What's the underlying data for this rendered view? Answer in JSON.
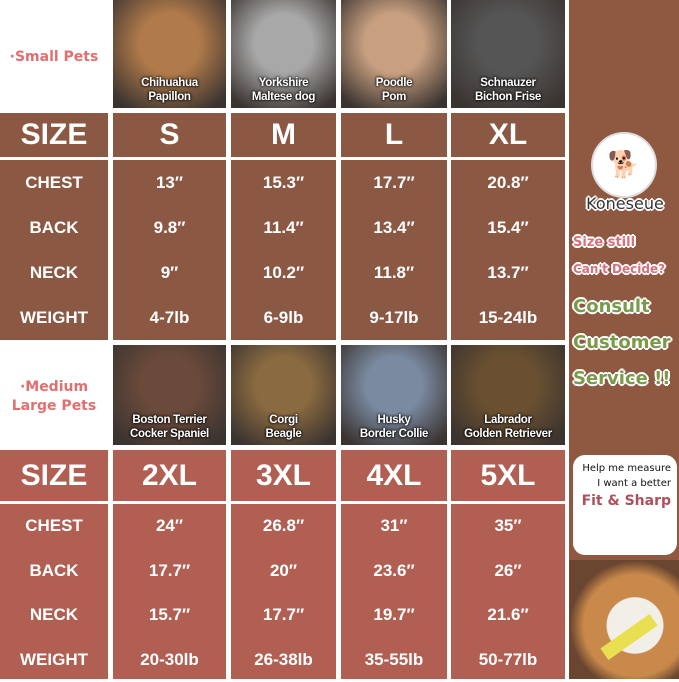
{
  "colors": {
    "top_table": "#8b5843",
    "bottom_table": "#b25f53",
    "sidebar": "#8f5840",
    "pink": "#e07070",
    "green": "#7a9a4a"
  },
  "small": {
    "group_label": "·Small Pets",
    "photos": [
      {
        "label": "Chihuahua\nPapillon",
        "tone": "#b07a4a"
      },
      {
        "label": "Yorkshire\nMaltese dog",
        "tone": "#a8a8a8"
      },
      {
        "label": "Poodle\nPom",
        "tone": "#c8a080"
      },
      {
        "label": "Schnauzer\nBichon Frise",
        "tone": "#555555"
      }
    ],
    "header": [
      "SIZE",
      "S",
      "M",
      "L",
      "XL"
    ],
    "rows": [
      [
        "CHEST",
        "13″",
        "15.3″",
        "17.7″",
        "20.8″"
      ],
      [
        "BACK",
        "9.8″",
        "11.4″",
        "13.4″",
        "15.4″"
      ],
      [
        "NECK",
        "9″",
        "10.2″",
        "11.8″",
        "13.7″"
      ],
      [
        "WEIGHT",
        "4-7lb",
        "6-9lb",
        "9-17lb",
        "15-24lb"
      ]
    ]
  },
  "medium": {
    "group_label": "·Medium\nLarge Pets",
    "photos": [
      {
        "label": "Boston Terrier\nCocker Spaniel",
        "tone": "#6a4a3a"
      },
      {
        "label": "Corgi\nBeagle",
        "tone": "#8a6a40"
      },
      {
        "label": "Husky\nBorder Collie",
        "tone": "#7a8aa0"
      },
      {
        "label": "Labrador\nGolden Retriever",
        "tone": "#6a5030"
      }
    ],
    "header": [
      "SIZE",
      "2XL",
      "3XL",
      "4XL",
      "5XL"
    ],
    "rows": [
      [
        "CHEST",
        "24″",
        "26.8″",
        "31″",
        "35″"
      ],
      [
        "BACK",
        "17.7″",
        "20″",
        "23.6″",
        "26″"
      ],
      [
        "NECK",
        "15.7″",
        "17.7″",
        "19.7″",
        "21.6″"
      ],
      [
        "WEIGHT",
        "20-30lb",
        "26-38lb",
        "35-55lb",
        "50-77lb"
      ]
    ]
  },
  "sidebar": {
    "brand": "Koneseue",
    "line1": "Size still",
    "line2": "Can't Decide?",
    "cta": [
      "Consult",
      "Customer",
      "Service !!"
    ],
    "bubble_line1": "Help me measure",
    "bubble_line2": "I want a better",
    "bubble_line3": "Fit & Sharp"
  }
}
